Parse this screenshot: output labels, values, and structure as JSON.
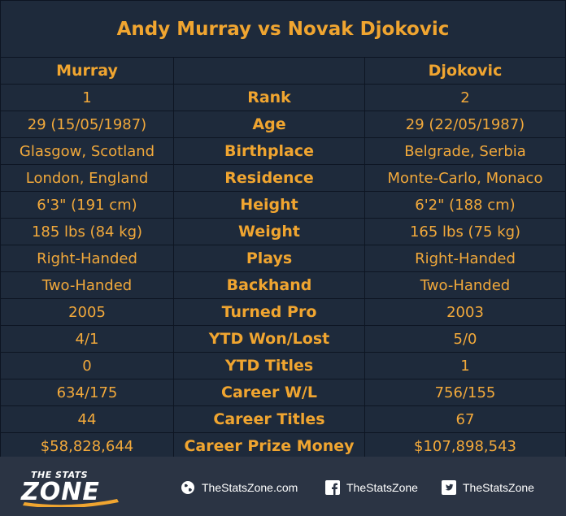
{
  "title": "Andy Murray vs Novak Djokovic",
  "headers": {
    "left": "Murray",
    "middle": "",
    "right": "Djokovic"
  },
  "rows": [
    {
      "left": "1",
      "label": "Rank",
      "right": "2"
    },
    {
      "left": "29 (15/05/1987)",
      "label": "Age",
      "right": "29 (22/05/1987)"
    },
    {
      "left": "Glasgow, Scotland",
      "label": "Birthplace",
      "right": "Belgrade, Serbia"
    },
    {
      "left": "London, England",
      "label": "Residence",
      "right": "Monte-Carlo, Monaco"
    },
    {
      "left": "6'3\" (191 cm)",
      "label": "Height",
      "right": "6'2\" (188 cm)"
    },
    {
      "left": "185 lbs (84 kg)",
      "label": "Weight",
      "right": "165 lbs (75 kg)"
    },
    {
      "left": "Right-Handed",
      "label": "Plays",
      "right": "Right-Handed"
    },
    {
      "left": "Two-Handed",
      "label": "Backhand",
      "right": "Two-Handed"
    },
    {
      "left": "2005",
      "label": "Turned Pro",
      "right": "2003"
    },
    {
      "left": "4/1",
      "label": "YTD Won/Lost",
      "right": "5/0"
    },
    {
      "left": "0",
      "label": "YTD Titles",
      "right": "1"
    },
    {
      "left": "634/175",
      "label": "Career W/L",
      "right": "756/155"
    },
    {
      "left": "44",
      "label": "Career Titles",
      "right": "67"
    },
    {
      "left": "$58,828,644",
      "label": "Career Prize Money",
      "right": "$107,898,543"
    }
  ],
  "footer": {
    "logo": {
      "small": "THE STATS",
      "big": "ZONE",
      "icon": "stats-zone-logo"
    },
    "links": [
      {
        "icon": "globe-icon",
        "text": "TheStatsZone.com"
      },
      {
        "icon": "facebook-icon",
        "text": "TheStatsZone"
      },
      {
        "icon": "twitter-icon",
        "text": "TheStatsZone"
      }
    ]
  },
  "colors": {
    "background": "#1e2a3b",
    "footer": "#2b3444",
    "accent": "#f0a530",
    "grid": "#0d1522",
    "footer_text": "#ffffff"
  }
}
